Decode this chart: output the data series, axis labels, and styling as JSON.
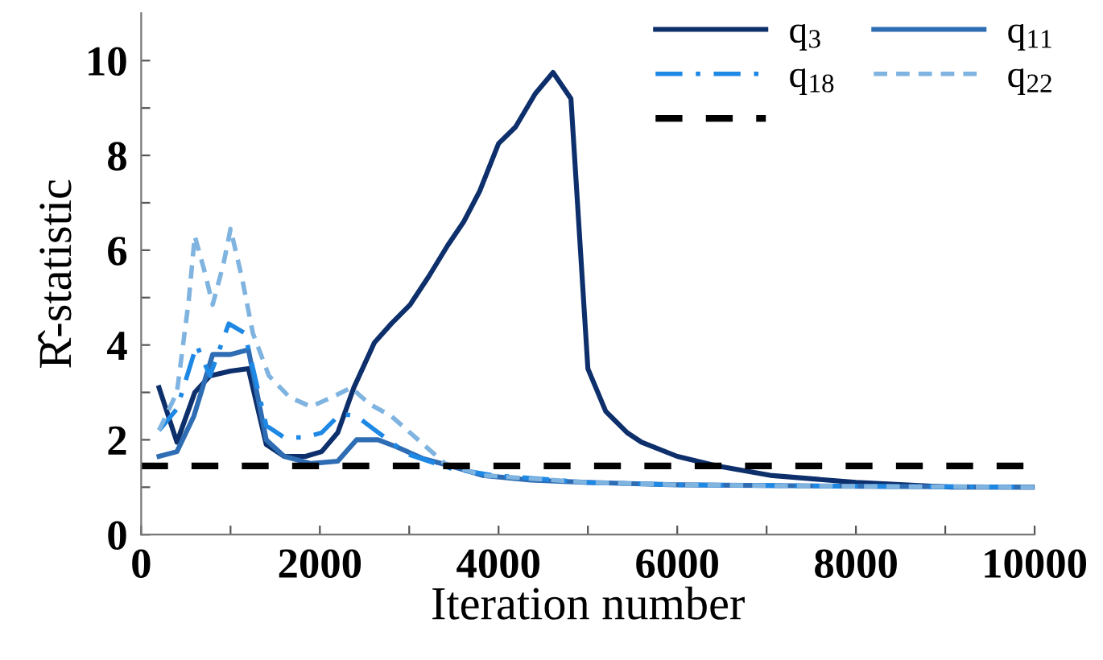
{
  "chart_data": {
    "type": "line",
    "xlabel": "Iteration number",
    "ylabel": "R̂-statistic",
    "xlim": [
      0,
      10000
    ],
    "ylim": [
      0,
      11
    ],
    "xticks": [
      0,
      {
        "value": 1000,
        "label": null
      },
      2000,
      {
        "value": 3000,
        "label": null
      },
      4000,
      {
        "value": 5000,
        "label": null
      },
      6000,
      {
        "value": 7000,
        "label": null
      },
      8000,
      {
        "value": 9000,
        "label": null
      },
      10000
    ],
    "yticks": [
      0,
      {
        "value": 1,
        "label": null
      },
      2,
      {
        "value": 3,
        "label": null
      },
      4,
      {
        "value": 5,
        "label": null
      },
      6,
      {
        "value": 7,
        "label": null
      },
      8,
      {
        "value": 9,
        "label": null
      },
      10
    ],
    "grid": false,
    "legend": "top right",
    "marker": "none",
    "series": [
      {
        "name": "q$_{3}$",
        "color": "#0d2f6b",
        "line_style": "solid",
        "x": [
          200,
          400,
          600,
          770,
          1000,
          1200,
          1400,
          1600,
          1840,
          2020,
          2200,
          2380,
          2610,
          2800,
          3010,
          3220,
          3430,
          3610,
          3790,
          4000,
          4190,
          4410,
          4610,
          4810,
          5000,
          5200,
          5440,
          5600,
          6000,
          6440,
          7040,
          8000,
          9070,
          10000
        ],
        "values": [
          3.1,
          1.95,
          3.0,
          3.35,
          3.45,
          3.5,
          1.9,
          1.65,
          1.65,
          1.75,
          2.15,
          3.1,
          4.05,
          4.45,
          4.85,
          5.45,
          6.1,
          6.6,
          7.25,
          8.25,
          8.6,
          9.3,
          9.75,
          9.2,
          3.5,
          2.6,
          2.15,
          1.95,
          1.65,
          1.45,
          1.25,
          1.1,
          1.0,
          1.0
        ]
      },
      {
        "name": "q$_{11}$",
        "color": "#2e6db4",
        "line_style": "solid",
        "x": [
          200,
          400,
          590,
          800,
          1000,
          1200,
          1400,
          1600,
          1900,
          2200,
          2410,
          2650,
          2860,
          3160,
          3460,
          3820,
          4360,
          5000,
          6000,
          8000,
          10000
        ],
        "values": [
          1.65,
          1.75,
          2.5,
          3.8,
          3.8,
          3.9,
          2.0,
          1.65,
          1.5,
          1.55,
          2.0,
          2.0,
          1.85,
          1.6,
          1.45,
          1.25,
          1.15,
          1.1,
          1.05,
          1.02,
          1.0
        ]
      },
      {
        "name": "q$_{18}$",
        "color": "#1e88e5",
        "line_style": "dashdot",
        "x": [
          200,
          400,
          620,
          770,
          980,
          1160,
          1400,
          1600,
          1840,
          2020,
          2230,
          2410,
          2620,
          2980,
          3460,
          3940,
          5000,
          6000,
          8000,
          10000
        ],
        "values": [
          2.2,
          2.65,
          4.0,
          3.35,
          4.45,
          4.25,
          2.3,
          2.05,
          2.05,
          2.15,
          2.55,
          2.5,
          2.2,
          1.7,
          1.4,
          1.25,
          1.1,
          1.05,
          1.02,
          1.0
        ]
      },
      {
        "name": "q$_{22}$",
        "color": "#7fb3e0",
        "line_style": "dashed",
        "x": [
          200,
          400,
          530,
          600,
          710,
          800,
          920,
          1000,
          1130,
          1250,
          1430,
          1660,
          1900,
          2140,
          2350,
          2560,
          2800,
          3100,
          3400,
          3820,
          5000,
          6000,
          8000,
          10000
        ],
        "values": [
          2.2,
          3.0,
          4.9,
          6.3,
          5.55,
          4.85,
          5.7,
          6.45,
          5.4,
          4.25,
          3.35,
          2.9,
          2.7,
          2.9,
          3.1,
          2.75,
          2.5,
          2.0,
          1.5,
          1.25,
          1.1,
          1.05,
          1.02,
          1.0
        ]
      }
    ],
    "ref_lines": [
      {
        "axis": "y",
        "value": 1.45,
        "color": "#000000",
        "line_style": "dashed"
      }
    ]
  }
}
